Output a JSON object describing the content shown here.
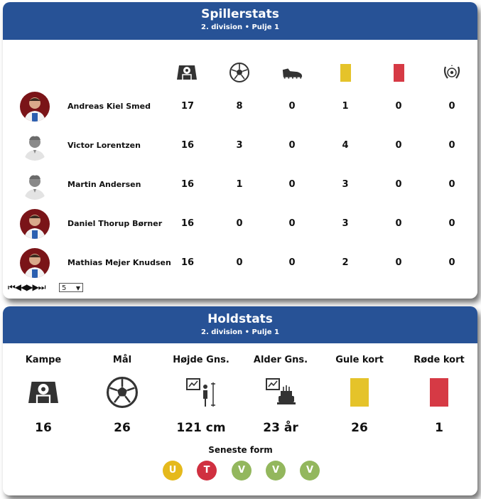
{
  "player_stats": {
    "title": "Spillerstats",
    "subtitle": "2. division • Pulje 1",
    "column_icons": [
      "pitch-icon",
      "football-icon",
      "boot-icon",
      "yellow-card-icon",
      "red-card-icon",
      "laurel-ball-icon"
    ],
    "rows": [
      {
        "name": "Andreas Kiel Smed",
        "avatar": "photo",
        "values": [
          "17",
          "8",
          "0",
          "1",
          "0",
          "0"
        ]
      },
      {
        "name": "Victor Lorentzen",
        "avatar": "placeholder",
        "values": [
          "16",
          "3",
          "0",
          "4",
          "0",
          "0"
        ]
      },
      {
        "name": "Martin Andersen",
        "avatar": "placeholder",
        "values": [
          "16",
          "1",
          "0",
          "3",
          "0",
          "0"
        ]
      },
      {
        "name": "Daniel Thorup Børner",
        "avatar": "photo",
        "values": [
          "16",
          "0",
          "0",
          "3",
          "0",
          "0"
        ]
      },
      {
        "name": "Mathias Mejer Knudsen",
        "avatar": "photo",
        "values": [
          "16",
          "0",
          "0",
          "2",
          "0",
          "0"
        ]
      }
    ],
    "pager": {
      "symbols": "⏮◀◀▶▶⏭",
      "page_size": "5"
    }
  },
  "team_stats": {
    "title": "Holdstats",
    "subtitle": "2. division • Pulje 1",
    "items": [
      {
        "label": "Kampe",
        "value": "16",
        "icon": "pitch-icon"
      },
      {
        "label": "Mål",
        "value": "26",
        "icon": "football-icon"
      },
      {
        "label": "Højde Gns.",
        "value": "121 cm",
        "icon": "height-chart-icon"
      },
      {
        "label": "Alder Gns.",
        "value": "23 år",
        "icon": "age-chart-icon"
      },
      {
        "label": "Gule kort",
        "value": "26",
        "icon": "yellow-card-icon"
      },
      {
        "label": "Røde kort",
        "value": "1",
        "icon": "red-card-icon"
      }
    ],
    "form_label": "Seneste form",
    "form": [
      {
        "letter": "U",
        "color": "#e5b91c"
      },
      {
        "letter": "T",
        "color": "#d03040"
      },
      {
        "letter": "V",
        "color": "#93b75d"
      },
      {
        "letter": "V",
        "color": "#93b75d"
      },
      {
        "letter": "V",
        "color": "#93b75d"
      }
    ]
  },
  "colors": {
    "header": "#275296",
    "yellow_card": "#e5c32a",
    "red_card": "#d63a45",
    "icon": "#333333"
  }
}
